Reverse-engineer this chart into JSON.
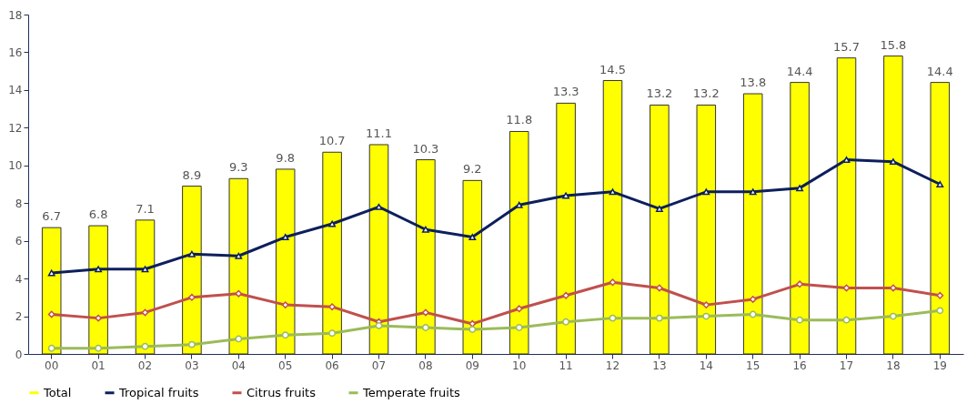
{
  "chart_data": {
    "type": "bar",
    "categories": [
      "00",
      "01",
      "02",
      "03",
      "04",
      "05",
      "06",
      "07",
      "08",
      "09",
      "10",
      "11",
      "12",
      "13",
      "14",
      "15",
      "16",
      "17",
      "18",
      "19"
    ],
    "series": [
      {
        "name": "Total",
        "color": "#ffff00",
        "values": [
          6.7,
          6.8,
          7.1,
          8.9,
          9.3,
          9.8,
          10.7,
          11.1,
          10.3,
          9.2,
          11.8,
          13.3,
          14.5,
          13.2,
          13.2,
          13.8,
          14.4,
          15.7,
          15.8,
          14.4
        ],
        "value_labels": [
          "6.7",
          "6.8",
          "7.1",
          "8.9",
          "9.3",
          "9.8",
          "10.7",
          "11.1",
          "10.3",
          "9.2",
          "11.8",
          "13.3",
          "14.5",
          "13.2",
          "13.2",
          "13.8",
          "14.4",
          "15.7",
          "15.8",
          "14.4"
        ]
      },
      {
        "name": "Tropical fruits",
        "type": "line",
        "color": "#0d1f5c",
        "marker": "triangle",
        "values": [
          4.3,
          4.5,
          4.5,
          5.3,
          5.2,
          6.2,
          6.9,
          7.8,
          6.6,
          6.2,
          7.9,
          8.4,
          8.6,
          7.7,
          8.6,
          8.6,
          8.8,
          10.3,
          10.2,
          9.0
        ]
      },
      {
        "name": "Citrus fruits",
        "type": "line",
        "color": "#c0504d",
        "marker": "diamond",
        "values": [
          2.1,
          1.9,
          2.2,
          3.0,
          3.2,
          2.6,
          2.5,
          1.7,
          2.2,
          1.6,
          2.4,
          3.1,
          3.8,
          3.5,
          2.6,
          2.9,
          3.7,
          3.5,
          3.5,
          3.1
        ]
      },
      {
        "name": "Temperate fruits",
        "type": "line",
        "color": "#9bbb59",
        "marker": "circle",
        "values": [
          0.3,
          0.3,
          0.4,
          0.5,
          0.8,
          1.0,
          1.1,
          1.5,
          1.4,
          1.3,
          1.4,
          1.7,
          1.9,
          1.9,
          2.0,
          2.1,
          1.8,
          1.8,
          2.0,
          2.3
        ]
      }
    ],
    "ylim": [
      0,
      18
    ],
    "yticks": [
      0,
      2,
      4,
      6,
      8,
      10,
      12,
      14,
      16,
      18
    ],
    "grid": false,
    "legend": "bottom",
    "line_style": "solid"
  }
}
